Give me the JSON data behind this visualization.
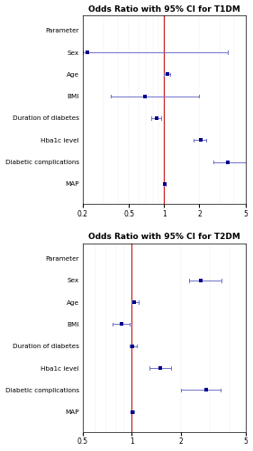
{
  "title1": "Odds Ratio with 95% CI for T1DM",
  "title2": "Odds Ratio with 95% CI for T2DM",
  "parameters": [
    "Parameter",
    "Sex",
    "Age",
    "BMI",
    "Duration of diabetes",
    "Hba1c level",
    "Diabetic complications",
    "MAP"
  ],
  "t1dm": {
    "or": [
      null,
      0.22,
      1.06,
      0.68,
      0.86,
      2.05,
      3.5,
      1.005
    ],
    "ci_lo": [
      null,
      0.2,
      1.0,
      0.35,
      0.77,
      1.78,
      2.65,
      0.99
    ],
    "ci_hi": [
      null,
      3.5,
      1.13,
      2.0,
      0.94,
      2.28,
      5.3,
      1.02
    ]
  },
  "t2dm": {
    "or": [
      null,
      2.65,
      1.04,
      0.87,
      1.01,
      1.5,
      2.85,
      1.01
    ],
    "ci_lo": [
      null,
      2.25,
      1.0,
      0.76,
      0.97,
      1.28,
      2.0,
      0.99
    ],
    "ci_hi": [
      null,
      3.55,
      1.1,
      0.97,
      1.08,
      1.75,
      3.5,
      1.03
    ]
  },
  "dot_color": "#00008B",
  "line_color": "#7070CC",
  "ref_line_color": "#CC2222",
  "grid_color": "#CCCCCC",
  "t1dm_xlim": [
    0.2,
    5.0
  ],
  "t1dm_xticks": [
    0.2,
    0.5,
    1.0,
    2.0,
    5.0
  ],
  "t2dm_xlim": [
    0.5,
    5.0
  ],
  "t2dm_xticks": [
    0.5,
    1.0,
    2.0,
    5.0
  ],
  "ref_val": 1.0,
  "title_fontsize": 6.5,
  "label_fontsize": 5.2,
  "tick_fontsize": 5.5
}
